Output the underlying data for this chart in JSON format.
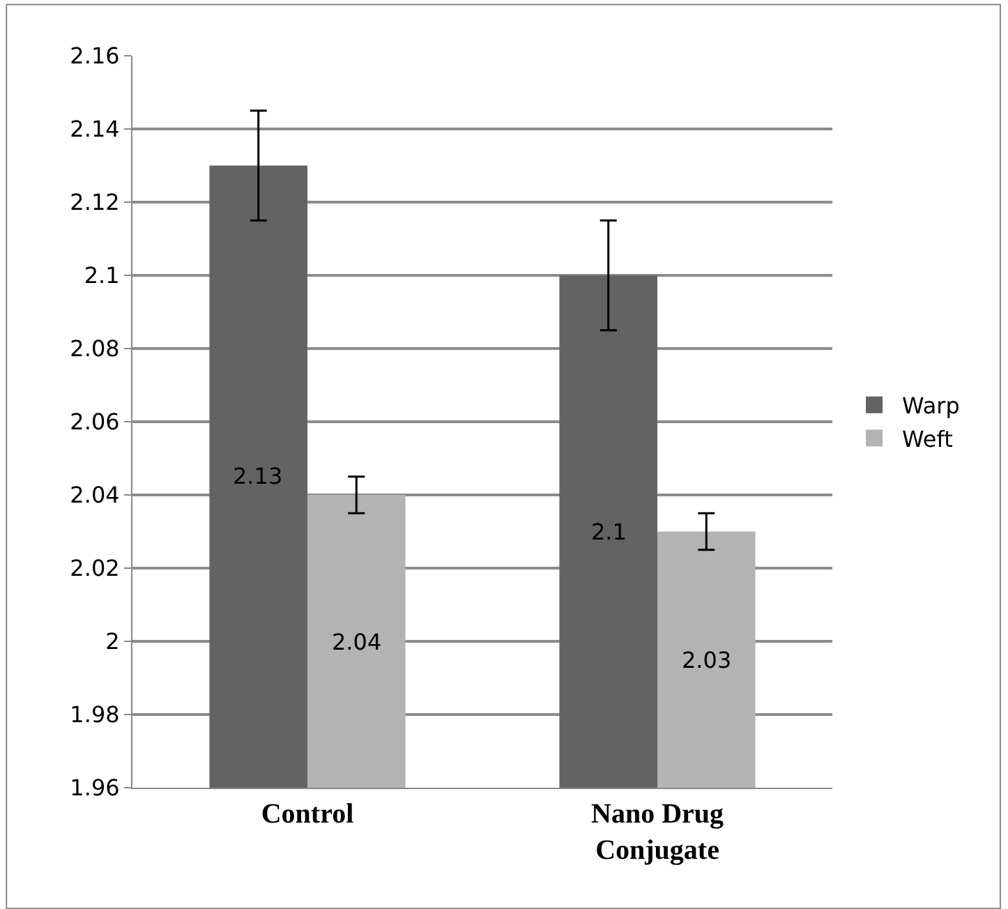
{
  "chart_data": {
    "type": "bar",
    "categories": [
      "Control",
      "Nano Drug\nConjugate"
    ],
    "series": [
      {
        "name": "Warp",
        "color": "#636363",
        "values": [
          2.13,
          2.1
        ],
        "errors": [
          0.015,
          0.015
        ]
      },
      {
        "name": "Weft",
        "color": "#b3b3b3",
        "values": [
          2.04,
          2.03
        ],
        "errors": [
          0.005,
          0.005
        ]
      }
    ],
    "ylim": [
      1.96,
      2.16
    ],
    "yticks": [
      1.96,
      1.98,
      2,
      2.02,
      2.04,
      2.06,
      2.08,
      2.1,
      2.12,
      2.14,
      2.16
    ],
    "grid": "y",
    "legend": "right",
    "data_labels": true
  }
}
